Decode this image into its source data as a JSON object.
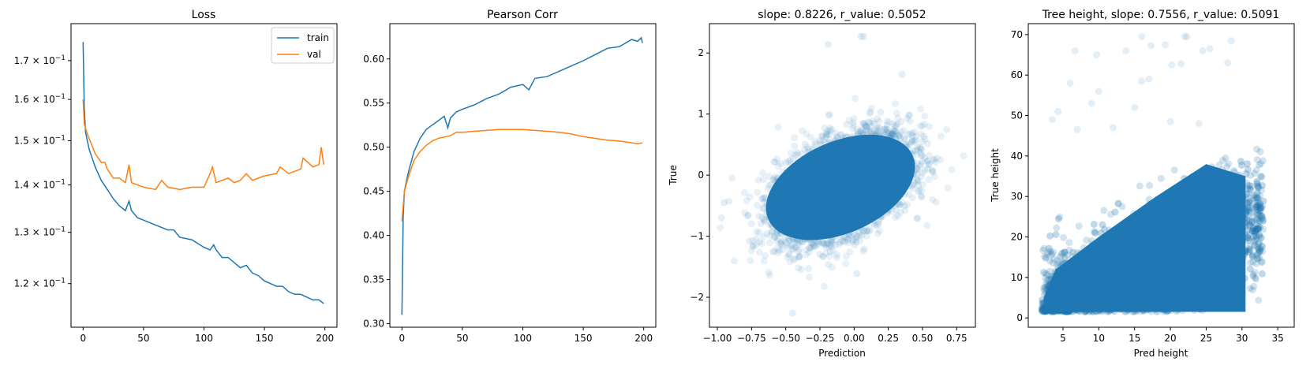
{
  "chart_data": [
    {
      "type": "line",
      "title": "Loss",
      "xlabel": "",
      "ylabel": "",
      "yscale": "log",
      "xlim": [
        -10,
        210
      ],
      "ylim": [
        0.1121,
        0.1801
      ],
      "xticks": [
        0,
        50,
        100,
        150,
        200
      ],
      "xtick_labels": [
        "0",
        "50",
        "100",
        "150",
        "200"
      ],
      "yticks": [
        0.12,
        0.13,
        0.14,
        0.15,
        0.16,
        0.17
      ],
      "ytick_labels": [
        "1.2",
        "1.3",
        "1.4",
        "1.5",
        "1.6",
        "1.7"
      ],
      "ytick_suffix": "× 10",
      "ytick_exp": "−1",
      "legend": "top-right",
      "grid": false,
      "series": [
        {
          "name": "train",
          "color": "#1f77b4",
          "x": [
            0,
            1,
            2,
            5,
            10,
            15,
            20,
            25,
            30,
            35,
            38,
            40,
            45,
            50,
            60,
            70,
            75,
            80,
            90,
            100,
            105,
            108,
            110,
            115,
            120,
            125,
            130,
            135,
            140,
            145,
            150,
            155,
            160,
            165,
            170,
            175,
            180,
            185,
            190,
            195,
            198,
            199
          ],
          "y": [
            0.175,
            0.158,
            0.152,
            0.148,
            0.144,
            0.141,
            0.139,
            0.137,
            0.1355,
            0.1345,
            0.1365,
            0.1345,
            0.133,
            0.1325,
            0.1315,
            0.1305,
            0.1305,
            0.129,
            0.1285,
            0.127,
            0.1265,
            0.1275,
            0.1265,
            0.125,
            0.125,
            0.124,
            0.123,
            0.1235,
            0.122,
            0.1215,
            0.1205,
            0.12,
            0.1195,
            0.1195,
            0.1185,
            0.118,
            0.118,
            0.1175,
            0.117,
            0.117,
            0.1165,
            0.1163
          ]
        },
        {
          "name": "val",
          "color": "#ff7f0e",
          "x": [
            0,
            1,
            3,
            5,
            10,
            15,
            18,
            20,
            25,
            30,
            35,
            38,
            40,
            50,
            60,
            65,
            70,
            80,
            90,
            100,
            105,
            107,
            110,
            120,
            125,
            130,
            135,
            140,
            150,
            160,
            163,
            170,
            180,
            182,
            190,
            195,
            197,
            199
          ],
          "y": [
            0.16,
            0.154,
            0.152,
            0.1505,
            0.147,
            0.145,
            0.145,
            0.1435,
            0.1415,
            0.1415,
            0.1405,
            0.1445,
            0.1405,
            0.1395,
            0.139,
            0.141,
            0.1395,
            0.139,
            0.1395,
            0.1395,
            0.1425,
            0.144,
            0.1405,
            0.1415,
            0.1405,
            0.141,
            0.1425,
            0.141,
            0.142,
            0.1425,
            0.144,
            0.1425,
            0.1435,
            0.146,
            0.144,
            0.1445,
            0.1485,
            0.1445
          ]
        }
      ]
    },
    {
      "type": "line",
      "title": "Pearson Corr",
      "xlabel": "",
      "ylabel": "",
      "xlim": [
        -10,
        210
      ],
      "ylim": [
        0.296,
        0.64
      ],
      "xticks": [
        0,
        50,
        100,
        150,
        200
      ],
      "xtick_labels": [
        "0",
        "50",
        "100",
        "150",
        "200"
      ],
      "yticks": [
        0.3,
        0.35,
        0.4,
        0.45,
        0.5,
        0.55,
        0.6
      ],
      "ytick_labels": [
        "0.30",
        "0.35",
        "0.40",
        "0.45",
        "0.50",
        "0.55",
        "0.60"
      ],
      "grid": false,
      "series": [
        {
          "color": "#1f77b4",
          "x": [
            0,
            1,
            2,
            5,
            10,
            15,
            20,
            25,
            30,
            35,
            38,
            40,
            45,
            50,
            60,
            70,
            80,
            90,
            100,
            105,
            110,
            120,
            130,
            140,
            150,
            160,
            170,
            180,
            190,
            195,
            198,
            199
          ],
          "y": [
            0.31,
            0.42,
            0.45,
            0.47,
            0.495,
            0.51,
            0.52,
            0.525,
            0.53,
            0.535,
            0.522,
            0.533,
            0.54,
            0.543,
            0.548,
            0.555,
            0.56,
            0.568,
            0.571,
            0.565,
            0.578,
            0.58,
            0.586,
            0.592,
            0.598,
            0.605,
            0.612,
            0.614,
            0.622,
            0.62,
            0.624,
            0.618
          ]
        },
        {
          "color": "#ff7f0e",
          "x": [
            0,
            2,
            5,
            10,
            15,
            20,
            25,
            30,
            40,
            45,
            50,
            60,
            70,
            80,
            90,
            100,
            110,
            120,
            130,
            140,
            150,
            160,
            170,
            180,
            190,
            195,
            199
          ],
          "y": [
            0.416,
            0.45,
            0.465,
            0.485,
            0.495,
            0.502,
            0.507,
            0.51,
            0.513,
            0.517,
            0.517,
            0.518,
            0.519,
            0.52,
            0.52,
            0.52,
            0.519,
            0.518,
            0.517,
            0.515,
            0.512,
            0.51,
            0.508,
            0.507,
            0.505,
            0.504,
            0.505
          ]
        }
      ]
    },
    {
      "type": "scatter",
      "title": "slope: 0.8226, r_value: 0.5052",
      "xlabel": "Prediction",
      "ylabel": "True",
      "slope": 0.8226,
      "r_value": 0.5052,
      "color": "#1f77b4",
      "alpha": 0.1,
      "xlim": [
        -1.058,
        0.887
      ],
      "ylim": [
        -2.49,
        2.48
      ],
      "xticks": [
        -1.0,
        -0.75,
        -0.5,
        -0.25,
        0.0,
        0.25,
        0.5,
        0.75
      ],
      "xtick_labels": [
        "−1.00",
        "−0.75",
        "−0.50",
        "−0.25",
        "0.00",
        "0.25",
        "0.50",
        "0.75"
      ],
      "yticks": [
        -2,
        -1,
        0,
        1,
        2
      ],
      "ytick_labels": [
        "−2",
        "−1",
        "0",
        "1",
        "2"
      ],
      "outliers": [
        [
          0.05,
          2.27
        ],
        [
          0.07,
          2.27
        ],
        [
          -0.19,
          2.14
        ],
        [
          -0.45,
          -2.26
        ],
        [
          0.02,
          -1.61
        ],
        [
          -0.97,
          -0.7
        ],
        [
          -0.95,
          -0.45
        ],
        [
          0.35,
          1.65
        ]
      ]
    },
    {
      "type": "scatter",
      "title": "Tree height, slope: 0.7556, r_value: 0.5091",
      "xlabel": "Pred height",
      "ylabel": "True height",
      "slope": 0.7556,
      "r_value": 0.5091,
      "color": "#1f77b4",
      "alpha": 0.1,
      "xlim": [
        0.15,
        37.3
      ],
      "ylim": [
        -2.3,
        72.7
      ],
      "xticks": [
        5,
        10,
        15,
        20,
        25,
        30,
        35
      ],
      "xtick_labels": [
        "5",
        "10",
        "15",
        "20",
        "25",
        "30",
        "35"
      ],
      "yticks": [
        0,
        10,
        20,
        30,
        40,
        50,
        60,
        70
      ],
      "ytick_labels": [
        "0",
        "10",
        "20",
        "30",
        "40",
        "50",
        "60",
        "70"
      ],
      "outliers": [
        [
          16,
          69.5
        ],
        [
          22,
          69.5
        ],
        [
          22.3,
          69.5
        ],
        [
          17.3,
          67.3
        ],
        [
          19.3,
          67.5
        ],
        [
          6.7,
          66
        ],
        [
          13.8,
          66
        ],
        [
          9.7,
          65
        ],
        [
          24.5,
          66
        ],
        [
          25.5,
          66.5
        ],
        [
          20.2,
          62.5
        ],
        [
          21.5,
          62.8
        ],
        [
          28,
          63
        ],
        [
          16,
          58.5
        ],
        [
          17,
          59
        ],
        [
          6,
          58
        ],
        [
          10,
          56
        ],
        [
          3.5,
          49
        ],
        [
          4.3,
          51
        ],
        [
          9,
          53
        ],
        [
          15,
          52
        ],
        [
          12,
          47
        ],
        [
          7,
          46.5
        ],
        [
          20,
          48.5
        ],
        [
          24,
          48
        ],
        [
          28.5,
          68.5
        ]
      ]
    }
  ]
}
